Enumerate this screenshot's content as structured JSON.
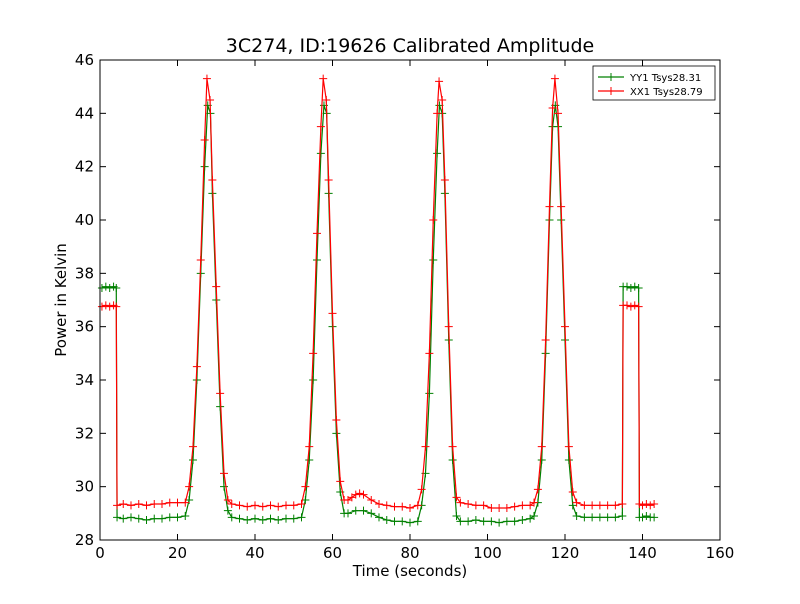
{
  "chart_data": {
    "type": "line",
    "title": "3C274, ID:19626 Calibrated Amplitude",
    "xlabel": "Time (seconds)",
    "ylabel": "Power in Kelvin",
    "xlim": [
      0,
      160
    ],
    "ylim": [
      28,
      46
    ],
    "xticks": [
      0,
      20,
      40,
      60,
      80,
      100,
      120,
      140,
      160
    ],
    "yticks": [
      28,
      30,
      32,
      34,
      36,
      38,
      40,
      42,
      44,
      46
    ],
    "grid": false,
    "legend_position": "top-right",
    "marker": "plus",
    "series": [
      {
        "name": "YY1 Tsys28.31",
        "color": "#008000",
        "points": [
          [
            0.5,
            37.45
          ],
          [
            1.5,
            37.5
          ],
          [
            2.5,
            37.45
          ],
          [
            3.5,
            37.5
          ],
          [
            4.2,
            37.45
          ],
          [
            4.4,
            28.85
          ],
          [
            6,
            28.8
          ],
          [
            8,
            28.85
          ],
          [
            10,
            28.8
          ],
          [
            12,
            28.75
          ],
          [
            14,
            28.8
          ],
          [
            16,
            28.8
          ],
          [
            18,
            28.85
          ],
          [
            20,
            28.85
          ],
          [
            22,
            28.9
          ],
          [
            23,
            29.5
          ],
          [
            24,
            31
          ],
          [
            25,
            34
          ],
          [
            26,
            38
          ],
          [
            27,
            42
          ],
          [
            27.8,
            44.3
          ],
          [
            28.5,
            44
          ],
          [
            29,
            41
          ],
          [
            30,
            37
          ],
          [
            31,
            33
          ],
          [
            32,
            30
          ],
          [
            33,
            29.1
          ],
          [
            34,
            28.85
          ],
          [
            36,
            28.8
          ],
          [
            38,
            28.75
          ],
          [
            40,
            28.8
          ],
          [
            42,
            28.75
          ],
          [
            44,
            28.8
          ],
          [
            46,
            28.75
          ],
          [
            48,
            28.8
          ],
          [
            50,
            28.8
          ],
          [
            52,
            28.85
          ],
          [
            53,
            29.5
          ],
          [
            54,
            31
          ],
          [
            55,
            34
          ],
          [
            56,
            38.5
          ],
          [
            57,
            42.5
          ],
          [
            57.8,
            44.3
          ],
          [
            58.5,
            44
          ],
          [
            59,
            41
          ],
          [
            60,
            36
          ],
          [
            61,
            32
          ],
          [
            62,
            29.8
          ],
          [
            63,
            29
          ],
          [
            64,
            29
          ],
          [
            66,
            29.1
          ],
          [
            68,
            29.1
          ],
          [
            70,
            29
          ],
          [
            72,
            28.85
          ],
          [
            74,
            28.75
          ],
          [
            76,
            28.7
          ],
          [
            78,
            28.7
          ],
          [
            80,
            28.65
          ],
          [
            82,
            28.7
          ],
          [
            83,
            29.3
          ],
          [
            84,
            30.5
          ],
          [
            85,
            33.5
          ],
          [
            86,
            38.5
          ],
          [
            87,
            42.5
          ],
          [
            87.6,
            44.3
          ],
          [
            88.3,
            44
          ],
          [
            89,
            41
          ],
          [
            90,
            35.5
          ],
          [
            91,
            31
          ],
          [
            92,
            28.9
          ],
          [
            93,
            28.7
          ],
          [
            95,
            28.7
          ],
          [
            97,
            28.75
          ],
          [
            99,
            28.7
          ],
          [
            101,
            28.7
          ],
          [
            103,
            28.65
          ],
          [
            105,
            28.7
          ],
          [
            107,
            28.7
          ],
          [
            109,
            28.75
          ],
          [
            111,
            28.8
          ],
          [
            112,
            28.9
          ],
          [
            113,
            29.4
          ],
          [
            114,
            31
          ],
          [
            115,
            35
          ],
          [
            116,
            40
          ],
          [
            116.8,
            43.5
          ],
          [
            117.5,
            44.3
          ],
          [
            118.2,
            43.5
          ],
          [
            119,
            40
          ],
          [
            120,
            35.5
          ],
          [
            121,
            31
          ],
          [
            122,
            29.3
          ],
          [
            123,
            28.9
          ],
          [
            125,
            28.85
          ],
          [
            127,
            28.85
          ],
          [
            129,
            28.85
          ],
          [
            131,
            28.85
          ],
          [
            133,
            28.85
          ],
          [
            134.8,
            28.9
          ],
          [
            135,
            37.5
          ],
          [
            136,
            37.5
          ],
          [
            137,
            37.45
          ],
          [
            138,
            37.5
          ],
          [
            139,
            37.45
          ],
          [
            139.2,
            28.85
          ],
          [
            140,
            28.85
          ],
          [
            141,
            28.9
          ],
          [
            142,
            28.85
          ],
          [
            143,
            28.85
          ]
        ]
      },
      {
        "name": "XX1 Tsys28.79",
        "color": "#ff0000",
        "points": [
          [
            0.5,
            36.75
          ],
          [
            1.5,
            36.8
          ],
          [
            2.5,
            36.75
          ],
          [
            3.5,
            36.8
          ],
          [
            4.2,
            36.75
          ],
          [
            4.4,
            29.3
          ],
          [
            6,
            29.35
          ],
          [
            8,
            29.3
          ],
          [
            10,
            29.35
          ],
          [
            12,
            29.3
          ],
          [
            14,
            29.35
          ],
          [
            16,
            29.35
          ],
          [
            18,
            29.4
          ],
          [
            20,
            29.4
          ],
          [
            22,
            29.4
          ],
          [
            23,
            30
          ],
          [
            24,
            31.5
          ],
          [
            25,
            34.5
          ],
          [
            26,
            38.5
          ],
          [
            27,
            43
          ],
          [
            27.6,
            45.3
          ],
          [
            28.4,
            44.5
          ],
          [
            29,
            41.5
          ],
          [
            30,
            37.5
          ],
          [
            31,
            33.5
          ],
          [
            32,
            30.5
          ],
          [
            33,
            29.5
          ],
          [
            34,
            29.35
          ],
          [
            36,
            29.3
          ],
          [
            38,
            29.25
          ],
          [
            40,
            29.3
          ],
          [
            42,
            29.25
          ],
          [
            44,
            29.3
          ],
          [
            46,
            29.25
          ],
          [
            48,
            29.3
          ],
          [
            50,
            29.3
          ],
          [
            52,
            29.35
          ],
          [
            53,
            30
          ],
          [
            54,
            31.5
          ],
          [
            55,
            35
          ],
          [
            56,
            39.5
          ],
          [
            57,
            43.5
          ],
          [
            57.6,
            45.3
          ],
          [
            58.4,
            44.5
          ],
          [
            59,
            41.5
          ],
          [
            60,
            36.5
          ],
          [
            61,
            32.5
          ],
          [
            62,
            30.2
          ],
          [
            63,
            29.5
          ],
          [
            64,
            29.5
          ],
          [
            65,
            29.6
          ],
          [
            66,
            29.7
          ],
          [
            67,
            29.75
          ],
          [
            68,
            29.7
          ],
          [
            70,
            29.5
          ],
          [
            72,
            29.35
          ],
          [
            74,
            29.3
          ],
          [
            76,
            29.25
          ],
          [
            78,
            29.25
          ],
          [
            80,
            29.2
          ],
          [
            82,
            29.3
          ],
          [
            83,
            29.9
          ],
          [
            84,
            31.5
          ],
          [
            85,
            35
          ],
          [
            86,
            40
          ],
          [
            87,
            44
          ],
          [
            87.5,
            45.2
          ],
          [
            88.3,
            44.5
          ],
          [
            89,
            41.5
          ],
          [
            90,
            36
          ],
          [
            91,
            31.5
          ],
          [
            92,
            29.6
          ],
          [
            93,
            29.4
          ],
          [
            95,
            29.35
          ],
          [
            97,
            29.3
          ],
          [
            99,
            29.3
          ],
          [
            101,
            29.2
          ],
          [
            103,
            29.2
          ],
          [
            105,
            29.2
          ],
          [
            107,
            29.25
          ],
          [
            109,
            29.3
          ],
          [
            111,
            29.3
          ],
          [
            112,
            29.4
          ],
          [
            113,
            29.9
          ],
          [
            114,
            31.5
          ],
          [
            115,
            35.5
          ],
          [
            116,
            40.5
          ],
          [
            116.8,
            44.2
          ],
          [
            117.4,
            45.3
          ],
          [
            118.2,
            44
          ],
          [
            119,
            40.5
          ],
          [
            120,
            36
          ],
          [
            121,
            31.5
          ],
          [
            122,
            29.8
          ],
          [
            123,
            29.4
          ],
          [
            125,
            29.3
          ],
          [
            127,
            29.3
          ],
          [
            129,
            29.3
          ],
          [
            131,
            29.3
          ],
          [
            133,
            29.3
          ],
          [
            134.8,
            29.35
          ],
          [
            135,
            36.8
          ],
          [
            136,
            36.8
          ],
          [
            137,
            36.75
          ],
          [
            138,
            36.8
          ],
          [
            139,
            36.75
          ],
          [
            139.2,
            29.35
          ],
          [
            140,
            29.3
          ],
          [
            141,
            29.35
          ],
          [
            142,
            29.3
          ],
          [
            143,
            29.35
          ]
        ]
      }
    ]
  }
}
